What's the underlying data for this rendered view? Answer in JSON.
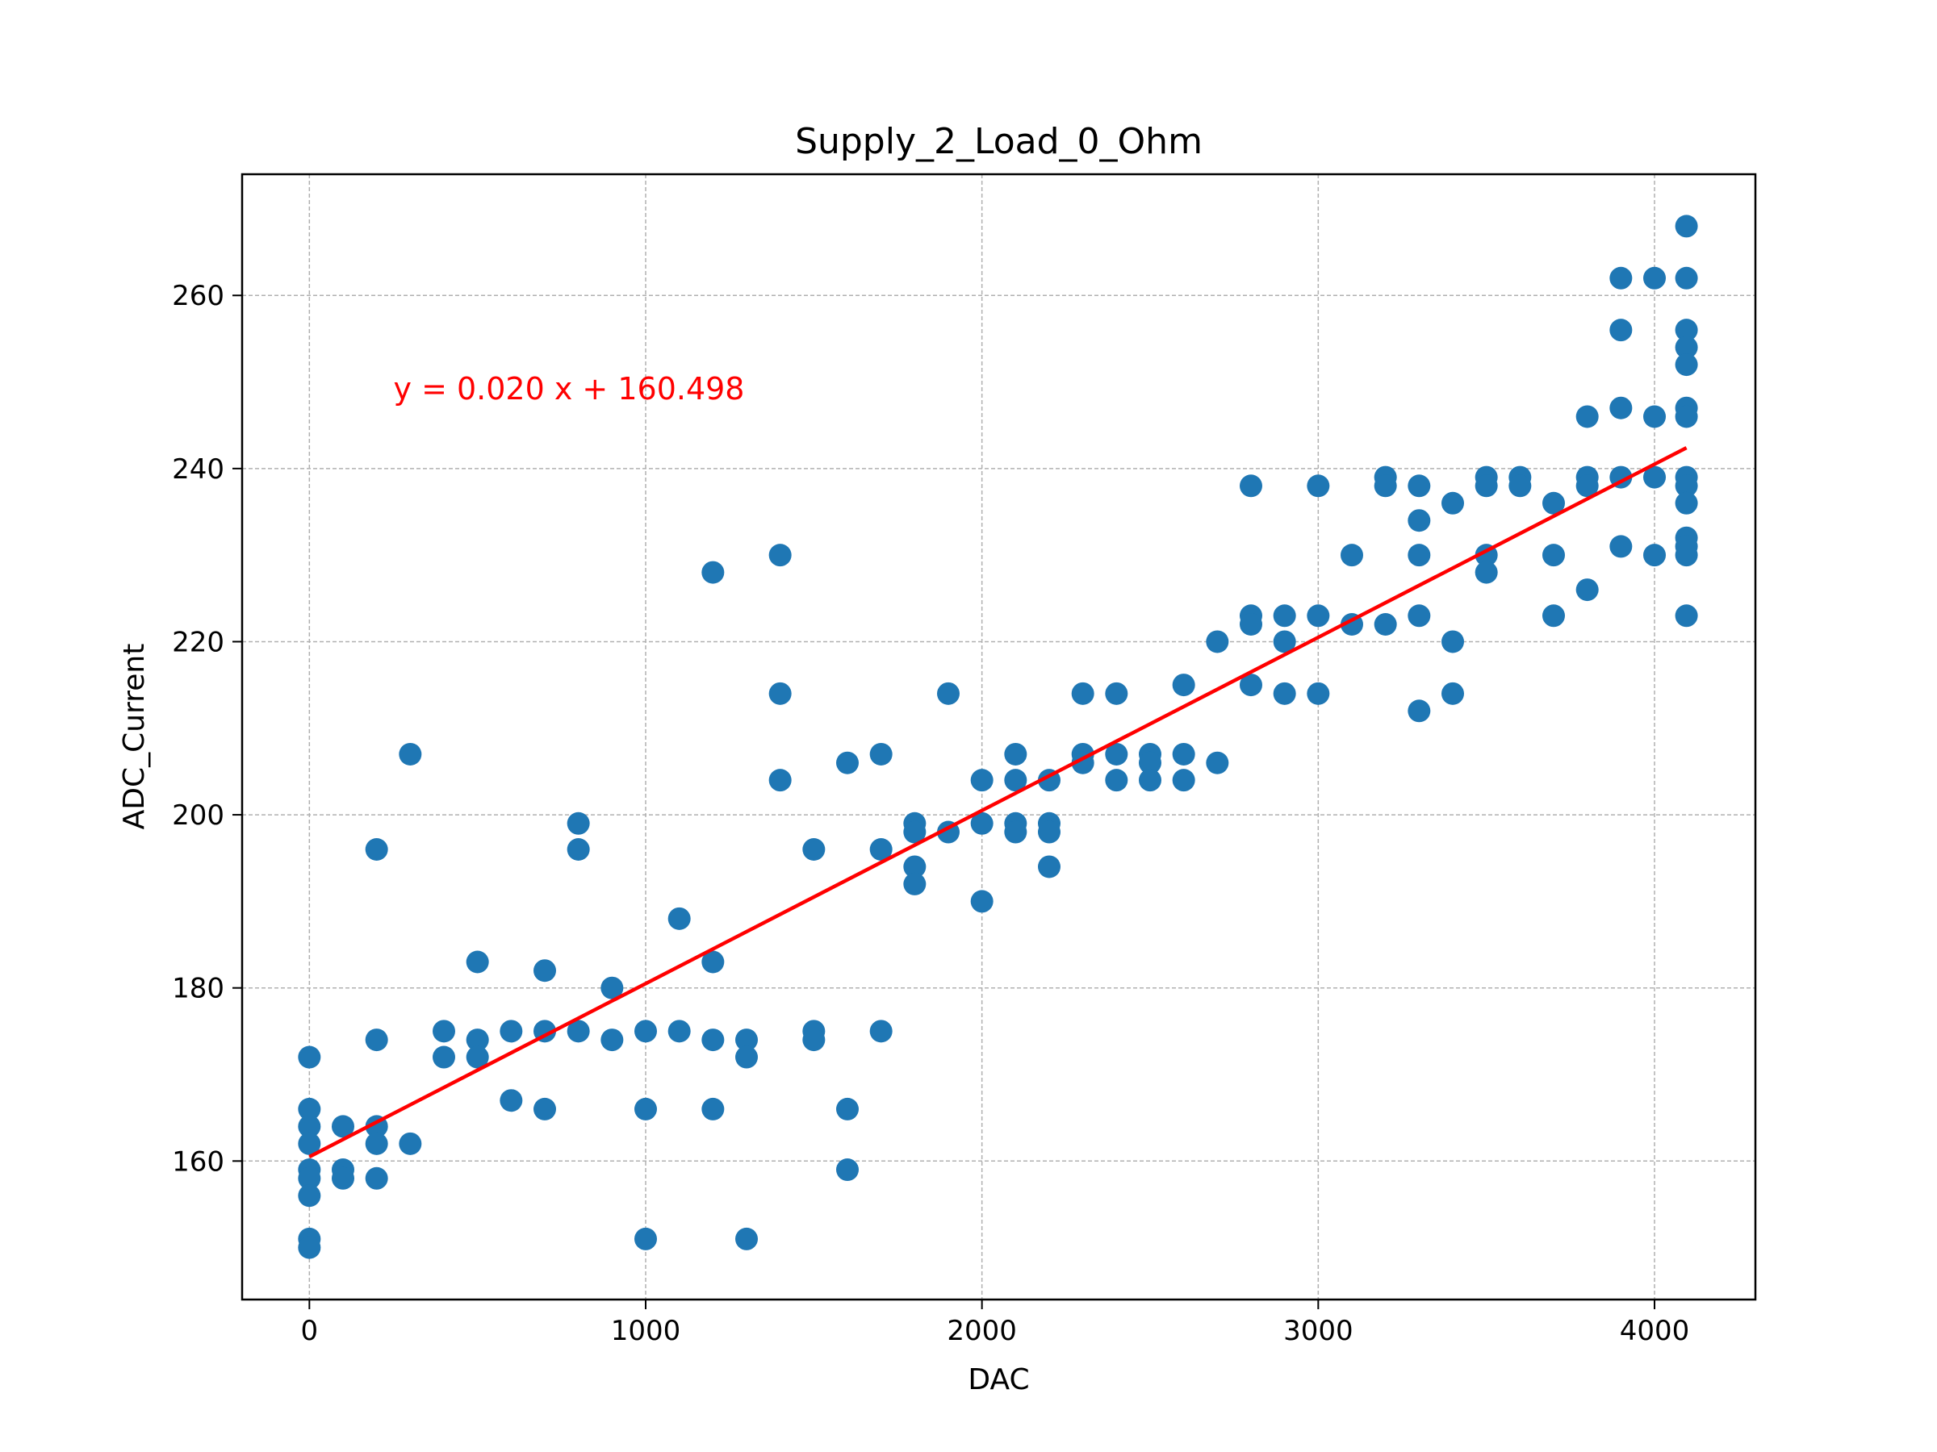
{
  "chart_data": {
    "type": "scatter",
    "title": "Supply_2_Load_0_Ohm",
    "xlabel": "DAC",
    "ylabel": "ADC_Current",
    "xlim": [
      -200,
      4300
    ],
    "ylim": [
      144,
      274
    ],
    "xticks": [
      0,
      1000,
      2000,
      3000,
      4000
    ],
    "yticks": [
      160,
      180,
      200,
      220,
      240,
      260
    ],
    "grid": true,
    "marker_color": "#1f77b4",
    "fit_color": "#ff0000",
    "fit": {
      "slope": 0.02,
      "intercept": 160.498,
      "x_range": [
        0,
        4095
      ]
    },
    "annotation": {
      "text": "y = 0.020 x + 160.498",
      "x": 250,
      "y": 248
    },
    "points": [
      [
        0,
        172
      ],
      [
        0,
        166
      ],
      [
        0,
        164
      ],
      [
        0,
        162
      ],
      [
        0,
        159
      ],
      [
        0,
        158
      ],
      [
        0,
        156
      ],
      [
        0,
        151
      ],
      [
        0,
        150
      ],
      [
        100,
        164
      ],
      [
        100,
        159
      ],
      [
        100,
        158
      ],
      [
        200,
        196
      ],
      [
        200,
        174
      ],
      [
        200,
        164
      ],
      [
        200,
        162
      ],
      [
        200,
        158
      ],
      [
        300,
        207
      ],
      [
        300,
        162
      ],
      [
        400,
        175
      ],
      [
        400,
        172
      ],
      [
        500,
        183
      ],
      [
        500,
        174
      ],
      [
        500,
        172
      ],
      [
        600,
        175
      ],
      [
        600,
        167
      ],
      [
        700,
        182
      ],
      [
        700,
        175
      ],
      [
        700,
        166
      ],
      [
        800,
        199
      ],
      [
        800,
        196
      ],
      [
        800,
        175
      ],
      [
        900,
        180
      ],
      [
        900,
        174
      ],
      [
        1000,
        175
      ],
      [
        1000,
        166
      ],
      [
        1000,
        151
      ],
      [
        1100,
        188
      ],
      [
        1100,
        175
      ],
      [
        1200,
        228
      ],
      [
        1200,
        183
      ],
      [
        1200,
        174
      ],
      [
        1200,
        166
      ],
      [
        1300,
        174
      ],
      [
        1300,
        172
      ],
      [
        1300,
        151
      ],
      [
        1400,
        230
      ],
      [
        1400,
        214
      ],
      [
        1400,
        204
      ],
      [
        1500,
        196
      ],
      [
        1500,
        175
      ],
      [
        1500,
        174
      ],
      [
        1600,
        206
      ],
      [
        1600,
        166
      ],
      [
        1600,
        159
      ],
      [
        1700,
        207
      ],
      [
        1700,
        196
      ],
      [
        1700,
        175
      ],
      [
        1800,
        199
      ],
      [
        1800,
        198
      ],
      [
        1800,
        194
      ],
      [
        1800,
        192
      ],
      [
        1900,
        214
      ],
      [
        1900,
        198
      ],
      [
        2000,
        204
      ],
      [
        2000,
        199
      ],
      [
        2000,
        190
      ],
      [
        2100,
        207
      ],
      [
        2100,
        204
      ],
      [
        2100,
        199
      ],
      [
        2100,
        198
      ],
      [
        2200,
        204
      ],
      [
        2200,
        199
      ],
      [
        2200,
        198
      ],
      [
        2200,
        194
      ],
      [
        2300,
        214
      ],
      [
        2300,
        207
      ],
      [
        2300,
        206
      ],
      [
        2400,
        214
      ],
      [
        2400,
        207
      ],
      [
        2400,
        204
      ],
      [
        2500,
        207
      ],
      [
        2500,
        206
      ],
      [
        2500,
        204
      ],
      [
        2600,
        215
      ],
      [
        2600,
        207
      ],
      [
        2600,
        204
      ],
      [
        2700,
        220
      ],
      [
        2700,
        206
      ],
      [
        2800,
        238
      ],
      [
        2800,
        223
      ],
      [
        2800,
        222
      ],
      [
        2800,
        215
      ],
      [
        2900,
        223
      ],
      [
        2900,
        220
      ],
      [
        2900,
        214
      ],
      [
        3000,
        238
      ],
      [
        3000,
        223
      ],
      [
        3000,
        214
      ],
      [
        3100,
        230
      ],
      [
        3100,
        222
      ],
      [
        3200,
        239
      ],
      [
        3200,
        238
      ],
      [
        3200,
        222
      ],
      [
        3300,
        238
      ],
      [
        3300,
        234
      ],
      [
        3300,
        230
      ],
      [
        3300,
        223
      ],
      [
        3300,
        212
      ],
      [
        3400,
        236
      ],
      [
        3400,
        220
      ],
      [
        3400,
        214
      ],
      [
        3500,
        239
      ],
      [
        3500,
        238
      ],
      [
        3500,
        230
      ],
      [
        3500,
        228
      ],
      [
        3600,
        239
      ],
      [
        3600,
        238
      ],
      [
        3700,
        236
      ],
      [
        3700,
        230
      ],
      [
        3700,
        223
      ],
      [
        3800,
        246
      ],
      [
        3800,
        239
      ],
      [
        3800,
        238
      ],
      [
        3800,
        226
      ],
      [
        3900,
        262
      ],
      [
        3900,
        256
      ],
      [
        3900,
        247
      ],
      [
        3900,
        239
      ],
      [
        3900,
        231
      ],
      [
        4000,
        262
      ],
      [
        4000,
        246
      ],
      [
        4000,
        239
      ],
      [
        4000,
        230
      ],
      [
        4095,
        268
      ],
      [
        4095,
        262
      ],
      [
        4095,
        256
      ],
      [
        4095,
        254
      ],
      [
        4095,
        252
      ],
      [
        4095,
        247
      ],
      [
        4095,
        246
      ],
      [
        4095,
        239
      ],
      [
        4095,
        238
      ],
      [
        4095,
        236
      ],
      [
        4095,
        232
      ],
      [
        4095,
        231
      ],
      [
        4095,
        230
      ],
      [
        4095,
        223
      ]
    ]
  }
}
